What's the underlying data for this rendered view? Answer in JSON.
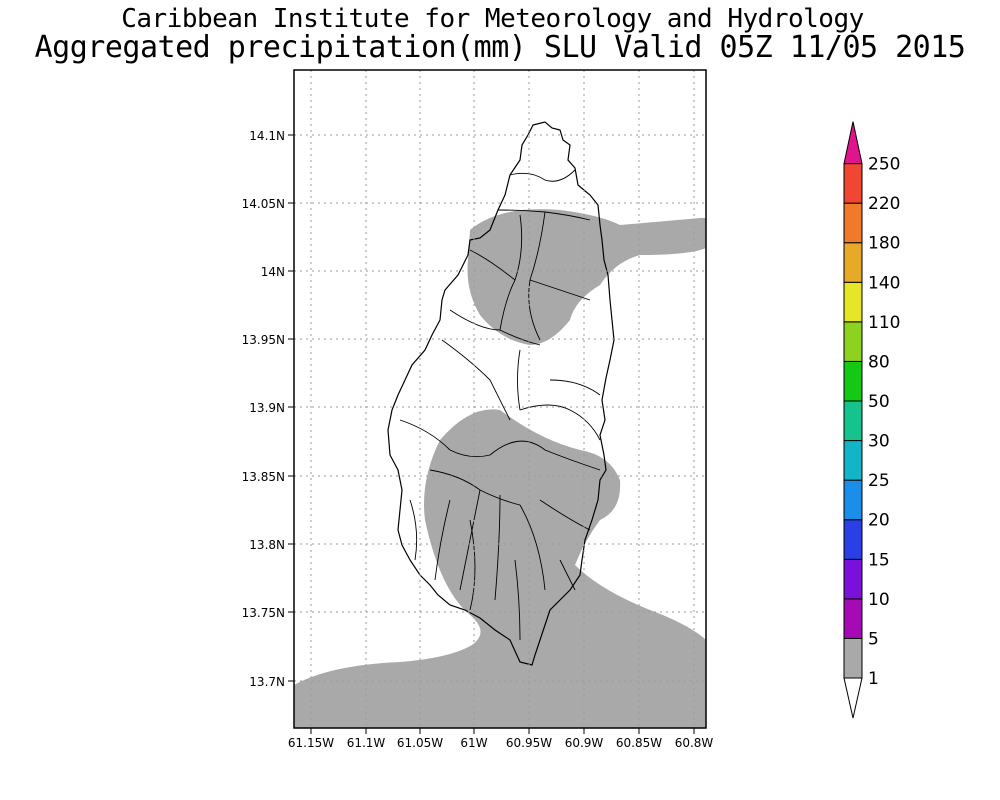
{
  "title": {
    "line1": "Caribbean Institute for Meteorology and Hydrology",
    "line2": "Aggregated precipitation(mm) SLU Valid 05Z 11/05 2015"
  },
  "axes": {
    "lat_labels": [
      "14.1N",
      "14.05N",
      "14N",
      "13.95N",
      "13.9N",
      "13.85N",
      "13.8N",
      "13.75N",
      "13.7N"
    ],
    "lon_labels": [
      "61.15W",
      "61.1W",
      "61.05W",
      "61W",
      "60.95W",
      "60.9W",
      "60.85W",
      "60.8W"
    ],
    "grid": true
  },
  "colorbar": {
    "levels": [
      "1",
      "5",
      "10",
      "15",
      "20",
      "25",
      "30",
      "50",
      "80",
      "110",
      "140",
      "180",
      "220",
      "250"
    ],
    "colors": [
      "#a9a9a9",
      "#a50ab5",
      "#7a10d9",
      "#2a3fe6",
      "#1a8ee8",
      "#14b4c8",
      "#14c48c",
      "#14c814",
      "#8cd21e",
      "#e6e626",
      "#e6aa28",
      "#f07a28",
      "#f04632",
      "#e0148c"
    ]
  },
  "map": {
    "region": "Saint Lucia",
    "shaded_range_mm": "1-5",
    "ocean_color": "#ffffff",
    "shade_color": "#a9a9a9"
  }
}
